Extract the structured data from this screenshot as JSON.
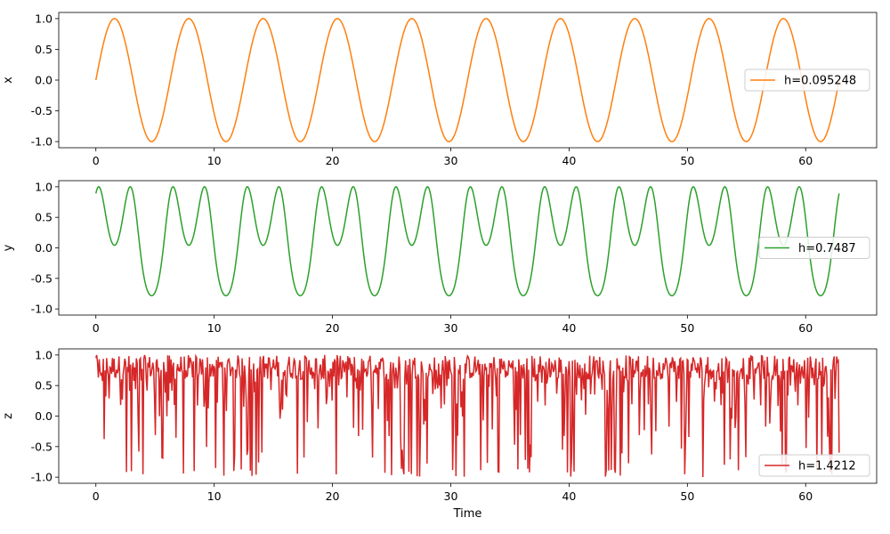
{
  "chart_data": [
    {
      "type": "line",
      "ylabel": "x",
      "xlabel": "",
      "xlim": [
        -3.14,
        66.0
      ],
      "ylim": [
        -1.1,
        1.1
      ],
      "xticks": [
        "0",
        "10",
        "20",
        "30",
        "40",
        "50",
        "60"
      ],
      "yticks": [
        "-1.0",
        "-0.5",
        "0.0",
        "0.5",
        "1.0"
      ],
      "legend": "right",
      "grid": false,
      "series": [
        {
          "name": "h=0.095248",
          "color": "#ff7f0e",
          "description_formula": "sin(t)",
          "x_range": [
            0,
            62.83
          ]
        }
      ]
    },
    {
      "type": "line",
      "ylabel": "y",
      "xlabel": "",
      "xlim": [
        -3.14,
        66.0
      ],
      "ylim": [
        -1.1,
        1.1
      ],
      "xticks": [
        "0",
        "10",
        "20",
        "30",
        "40",
        "50",
        "60"
      ],
      "yticks": [
        "-1.0",
        "-0.5",
        "0.0",
        "0.5",
        "1.0"
      ],
      "legend": "right",
      "grid": false,
      "series": [
        {
          "name": "h=0.7487",
          "color": "#2ca02c",
          "description_formula": "sin(2*sin(t) + 1.1)",
          "x_range": [
            0,
            62.83
          ]
        }
      ]
    },
    {
      "type": "line",
      "ylabel": "z",
      "xlabel": "Time",
      "xlim": [
        -3.14,
        66.0
      ],
      "ylim": [
        -1.1,
        1.1
      ],
      "xticks": [
        "0",
        "10",
        "20",
        "30",
        "40",
        "50",
        "60"
      ],
      "yticks": [
        "-1.0",
        "-0.5",
        "0.0",
        "0.5",
        "1.0"
      ],
      "legend": "lower right",
      "grid": false,
      "series": [
        {
          "name": "h=1.4212",
          "color": "#d62728",
          "description_formula": "chaotic-like noisy signal mostly between 0.2 and 1.0 with frequent dips to -1.0",
          "x_range": [
            0,
            62.83
          ]
        }
      ]
    }
  ]
}
